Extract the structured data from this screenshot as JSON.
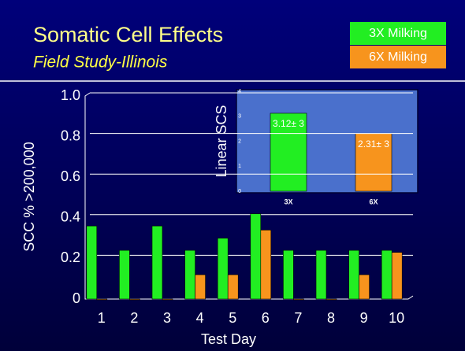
{
  "chart_data": [
    {
      "type": "bar",
      "title": "Somatic Cell Effects",
      "subtitle": "Field Study-Illinois",
      "x_label": "Test Day",
      "y_label": "SCC % >200,000",
      "categories": [
        "1",
        "2",
        "3",
        "4",
        "5",
        "6",
        "7",
        "8",
        "9",
        "10"
      ],
      "series": [
        {
          "name": "3X Milking",
          "color": "#22ee22",
          "values": [
            0.36,
            0.24,
            0.36,
            0.24,
            0.3,
            0.42,
            0.24,
            0.24,
            0.24,
            0.24
          ]
        },
        {
          "name": "6X Milking",
          "color": "#f7941d",
          "values": [
            0,
            0,
            0,
            0.12,
            0.12,
            0.34,
            0,
            0,
            0.12,
            0.23
          ]
        }
      ],
      "ylim": [
        0,
        1
      ],
      "yticks": [
        0,
        {
          "value": 0.2,
          "label": "0.2"
        },
        {
          "value": 0.4,
          "label": "0.4"
        },
        {
          "value": 0.6,
          "label": "0.6"
        },
        {
          "value": 0.8,
          "label": "0.8"
        },
        {
          "value": 1,
          "label": "1.0"
        }
      ],
      "grid": true
    },
    {
      "type": "bar",
      "y_label": "Linear SCS",
      "categories": [
        "3X",
        "6X"
      ],
      "values": [
        3.12,
        2.31
      ],
      "value_labels": [
        "3.12± 3",
        "2.31± 3"
      ],
      "colors": [
        "#22ee22",
        "#f7941d"
      ],
      "ylim": [
        0,
        4
      ],
      "yticks": [
        0,
        1,
        2,
        3,
        4
      ]
    }
  ]
}
